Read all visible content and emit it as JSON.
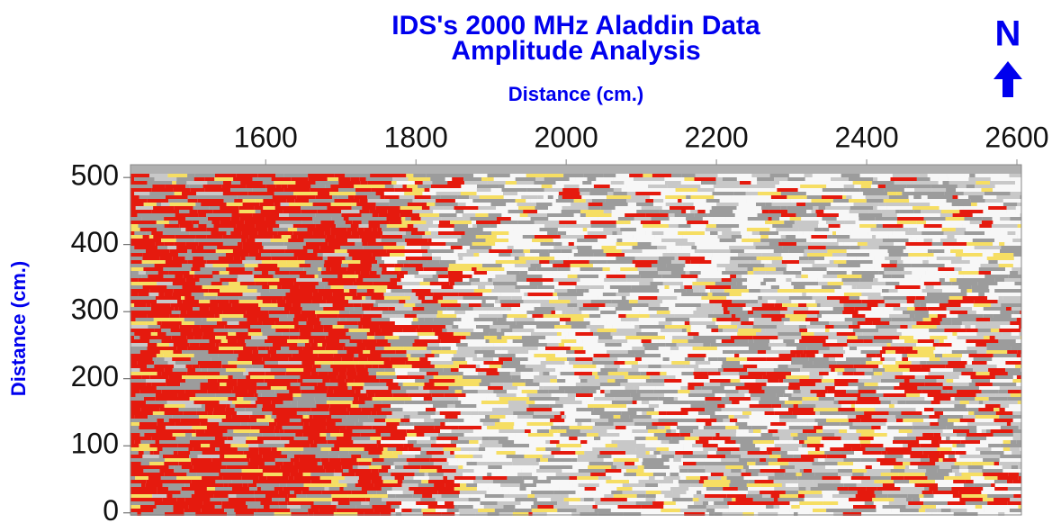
{
  "chart_data": {
    "type": "heatmap",
    "title": "IDS's 2000 MHz Aladdin Data",
    "subtitle": "Amplitude Analysis",
    "x_label": "Distance (cm.)",
    "y_label": "Distance (cm.)",
    "north_label": "N",
    "xlim": [
      1420,
      2606
    ],
    "xticks": [
      1600,
      1800,
      2000,
      2200,
      2400,
      2600
    ],
    "ylim": [
      -3,
      519
    ],
    "yticks": [
      0,
      100,
      200,
      300,
      400,
      500
    ]
  }
}
